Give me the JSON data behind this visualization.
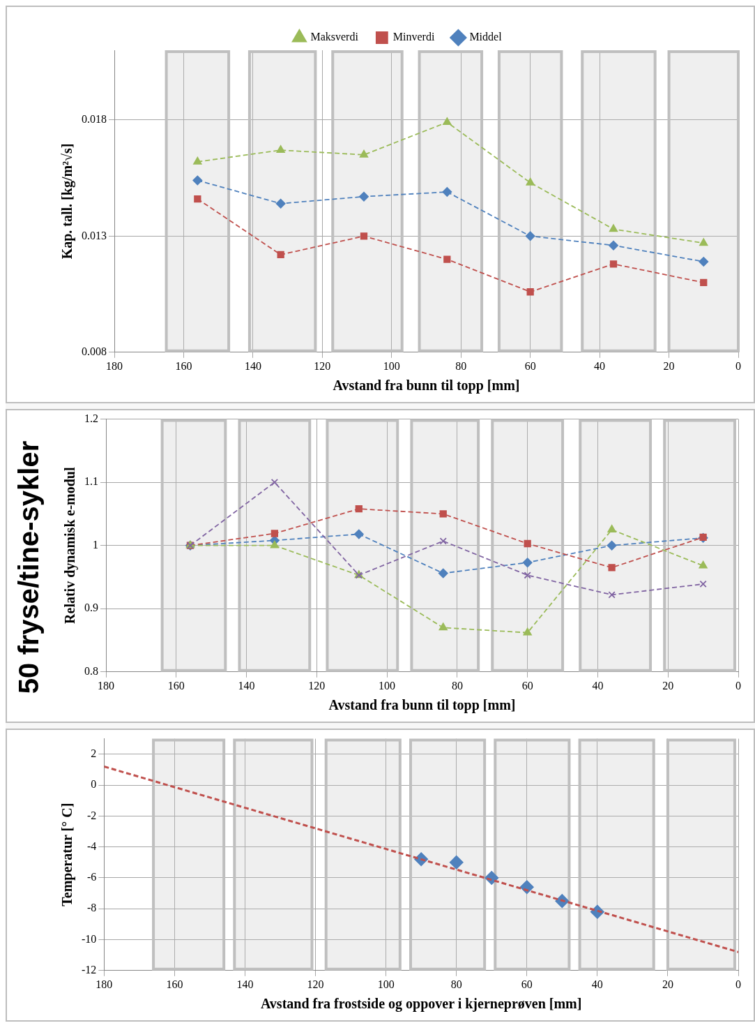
{
  "chart_data": [
    {
      "type": "line",
      "xlabel": "Avstand fra bunn til topp [mm]",
      "ylabel": "Kap. tall. [kg/m²√s]",
      "x": [
        156,
        132,
        108,
        84,
        60,
        36,
        10
      ],
      "xlim": [
        180,
        0
      ],
      "xticks": [
        180,
        160,
        140,
        120,
        100,
        80,
        60,
        40,
        20,
        0
      ],
      "ylim": [
        0.008,
        0.021
      ],
      "yticks": [
        0.008,
        0.013,
        0.018
      ],
      "grid": true,
      "legend": "top",
      "line_style": "dashed",
      "series": [
        {
          "name": "Middel",
          "color": "#4f81bd",
          "marker": "diamond",
          "values": [
            0.0154,
            0.0144,
            0.0147,
            0.0149,
            0.013,
            0.0126,
            0.0119
          ]
        },
        {
          "name": "Minverdi",
          "color": "#c0504d",
          "marker": "square",
          "values": [
            0.0146,
            0.0122,
            0.013,
            0.012,
            0.0106,
            0.0118,
            0.011
          ]
        },
        {
          "name": "Maksverdi",
          "color": "#9bbb59",
          "marker": "triangle",
          "values": [
            0.0162,
            0.0167,
            0.0165,
            0.0179,
            0.0153,
            0.0133,
            0.0127
          ]
        }
      ],
      "bands": [
        {
          "axis": "x",
          "from": 165,
          "to": 147,
          "color": "#bfbfbf"
        },
        {
          "axis": "x",
          "from": 141,
          "to": 122,
          "color": "#bfbfbf"
        },
        {
          "axis": "x",
          "from": 117,
          "to": 97,
          "color": "#bfbfbf"
        },
        {
          "axis": "x",
          "from": 92,
          "to": 74,
          "color": "#bfbfbf"
        },
        {
          "axis": "x",
          "from": 69,
          "to": 51,
          "color": "#bfbfbf"
        },
        {
          "axis": "x",
          "from": 45,
          "to": 24,
          "color": "#bfbfbf"
        },
        {
          "axis": "x",
          "from": 20,
          "to": 0,
          "color": "#bfbfbf"
        }
      ]
    },
    {
      "type": "line",
      "title": "50 fryse/tine-sykler",
      "xlabel": "Avstand fra bunn til topp [mm]",
      "ylabel": "Relativ dynamisk e-modul",
      "x": [
        156,
        132,
        108,
        84,
        60,
        36,
        10
      ],
      "xlim": [
        180,
        0
      ],
      "xticks": [
        180,
        160,
        140,
        120,
        100,
        80,
        60,
        40,
        20,
        0
      ],
      "ylim": [
        0.8,
        1.2
      ],
      "yticks": [
        0.8,
        0.9,
        1,
        1.1,
        1.2
      ],
      "grid": true,
      "line_style": "dashed",
      "series": [
        {
          "color": "#4f81bd",
          "marker": "diamond",
          "values": [
            1.0,
            1.008,
            1.018,
            0.956,
            0.973,
            1.0,
            1.012
          ]
        },
        {
          "color": "#c0504d",
          "marker": "square",
          "values": [
            1.0,
            1.019,
            1.058,
            1.05,
            1.003,
            0.965,
            1.013
          ]
        },
        {
          "color": "#9bbb59",
          "marker": "triangle",
          "values": [
            1.0,
            1.0,
            0.953,
            0.87,
            0.862,
            1.025,
            0.968
          ]
        },
        {
          "color": "#8064a2",
          "marker": "cross",
          "values": [
            1.0,
            1.1,
            0.953,
            1.007,
            0.953,
            0.922,
            0.939
          ]
        }
      ],
      "bands": [
        {
          "axis": "x",
          "from": 164,
          "to": 146,
          "color": "#bfbfbf"
        },
        {
          "axis": "x",
          "from": 142,
          "to": 122,
          "color": "#bfbfbf"
        },
        {
          "axis": "x",
          "from": 117,
          "to": 97,
          "color": "#bfbfbf"
        },
        {
          "axis": "x",
          "from": 93,
          "to": 74,
          "color": "#bfbfbf"
        },
        {
          "axis": "x",
          "from": 70,
          "to": 50,
          "color": "#bfbfbf"
        },
        {
          "axis": "x",
          "from": 45,
          "to": 25,
          "color": "#bfbfbf"
        },
        {
          "axis": "x",
          "from": 21,
          "to": 1,
          "color": "#bfbfbf"
        }
      ]
    },
    {
      "type": "scatter",
      "xlabel": "Avstand fra frostside og oppover i kjerneprøven [mm]",
      "ylabel": "Temperatur [° C]",
      "x": [
        90,
        80,
        70,
        60,
        50,
        40
      ],
      "xlim": [
        180,
        0
      ],
      "xticks": [
        180,
        160,
        140,
        120,
        100,
        80,
        60,
        40,
        20,
        0
      ],
      "ylim": [
        -12,
        3
      ],
      "yticks": [
        -12,
        -10,
        -8,
        -6,
        -4,
        -2,
        0,
        2
      ],
      "grid": true,
      "series": [
        {
          "color": "#4f81bd",
          "marker": "diamond",
          "values": [
            -4.8,
            -5.0,
            -6.0,
            -6.6,
            -7.5,
            -8.2
          ]
        },
        {
          "type": "line",
          "color": "#c0504d",
          "marker": "none",
          "line_style": "dashed",
          "x": [
            180,
            0
          ],
          "values": [
            1.2,
            -10.8
          ]
        }
      ],
      "bands": [
        {
          "axis": "x",
          "from": 166,
          "to": 146,
          "color": "#bfbfbf"
        },
        {
          "axis": "x",
          "from": 143,
          "to": 121,
          "color": "#bfbfbf"
        },
        {
          "axis": "x",
          "from": 117,
          "to": 96,
          "color": "#bfbfbf"
        },
        {
          "axis": "x",
          "from": 93,
          "to": 72,
          "color": "#bfbfbf"
        },
        {
          "axis": "x",
          "from": 69,
          "to": 48,
          "color": "#bfbfbf"
        },
        {
          "axis": "x",
          "from": 45,
          "to": 24,
          "color": "#bfbfbf"
        },
        {
          "axis": "x",
          "from": 20,
          "to": 1,
          "color": "#bfbfbf"
        }
      ]
    }
  ]
}
